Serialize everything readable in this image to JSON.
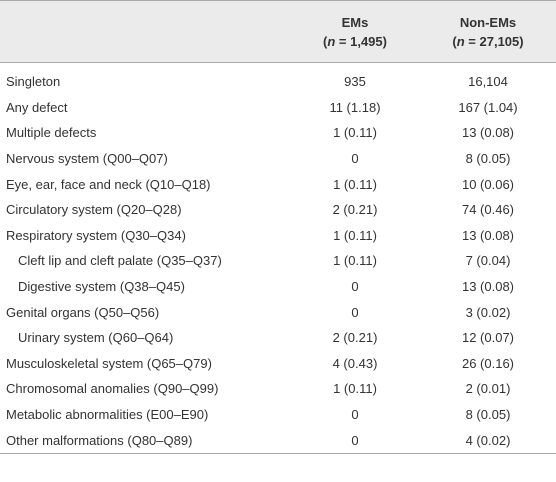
{
  "table": {
    "header": [
      {
        "title": "EMs",
        "open": "(",
        "n": "n",
        "rest": " = 1,495)"
      },
      {
        "title": "Non-EMs",
        "open": "(",
        "n": "n",
        "rest": " = 27,105)"
      }
    ],
    "rows": [
      [
        "Singleton",
        "935",
        "16,104"
      ],
      [
        "Any defect",
        "11 (1.18)",
        "167 (1.04)"
      ],
      [
        "Multiple defects",
        "1 (0.11)",
        "13 (0.08)"
      ],
      [
        "Nervous system (Q00–Q07)",
        "0",
        "8 (0.05)"
      ],
      [
        "Eye, ear, face and neck (Q10–Q18)",
        "1 (0.11)",
        "10 (0.06)"
      ],
      [
        "Circulatory system (Q20–Q28)",
        "2 (0.21)",
        "74 (0.46)"
      ],
      [
        "Respiratory system (Q30–Q34)",
        "1 (0.11)",
        "13 (0.08)"
      ],
      [
        "Cleft lip and cleft palate (Q35–Q37)",
        "1 (0.11)",
        "7 (0.04)"
      ],
      [
        "Digestive system (Q38–Q45)",
        "0",
        "13 (0.08)"
      ],
      [
        "Genital organs (Q50–Q56)",
        "0",
        "3 (0.02)"
      ],
      [
        "Urinary system (Q60–Q64)",
        "2 (0.21)",
        "12 (0.07)"
      ],
      [
        "Musculoskeletal system (Q65–Q79)",
        "4 (0.43)",
        "26 (0.16)"
      ],
      [
        "Chromosomal anomalies (Q90–Q99)",
        "1 (0.11)",
        "2 (0.01)"
      ],
      [
        "Metabolic abnormalities (E00–E90)",
        "0",
        "8 (0.05)"
      ],
      [
        "Other malformations (Q80–Q89)",
        "0",
        "4 (0.02)"
      ]
    ]
  }
}
